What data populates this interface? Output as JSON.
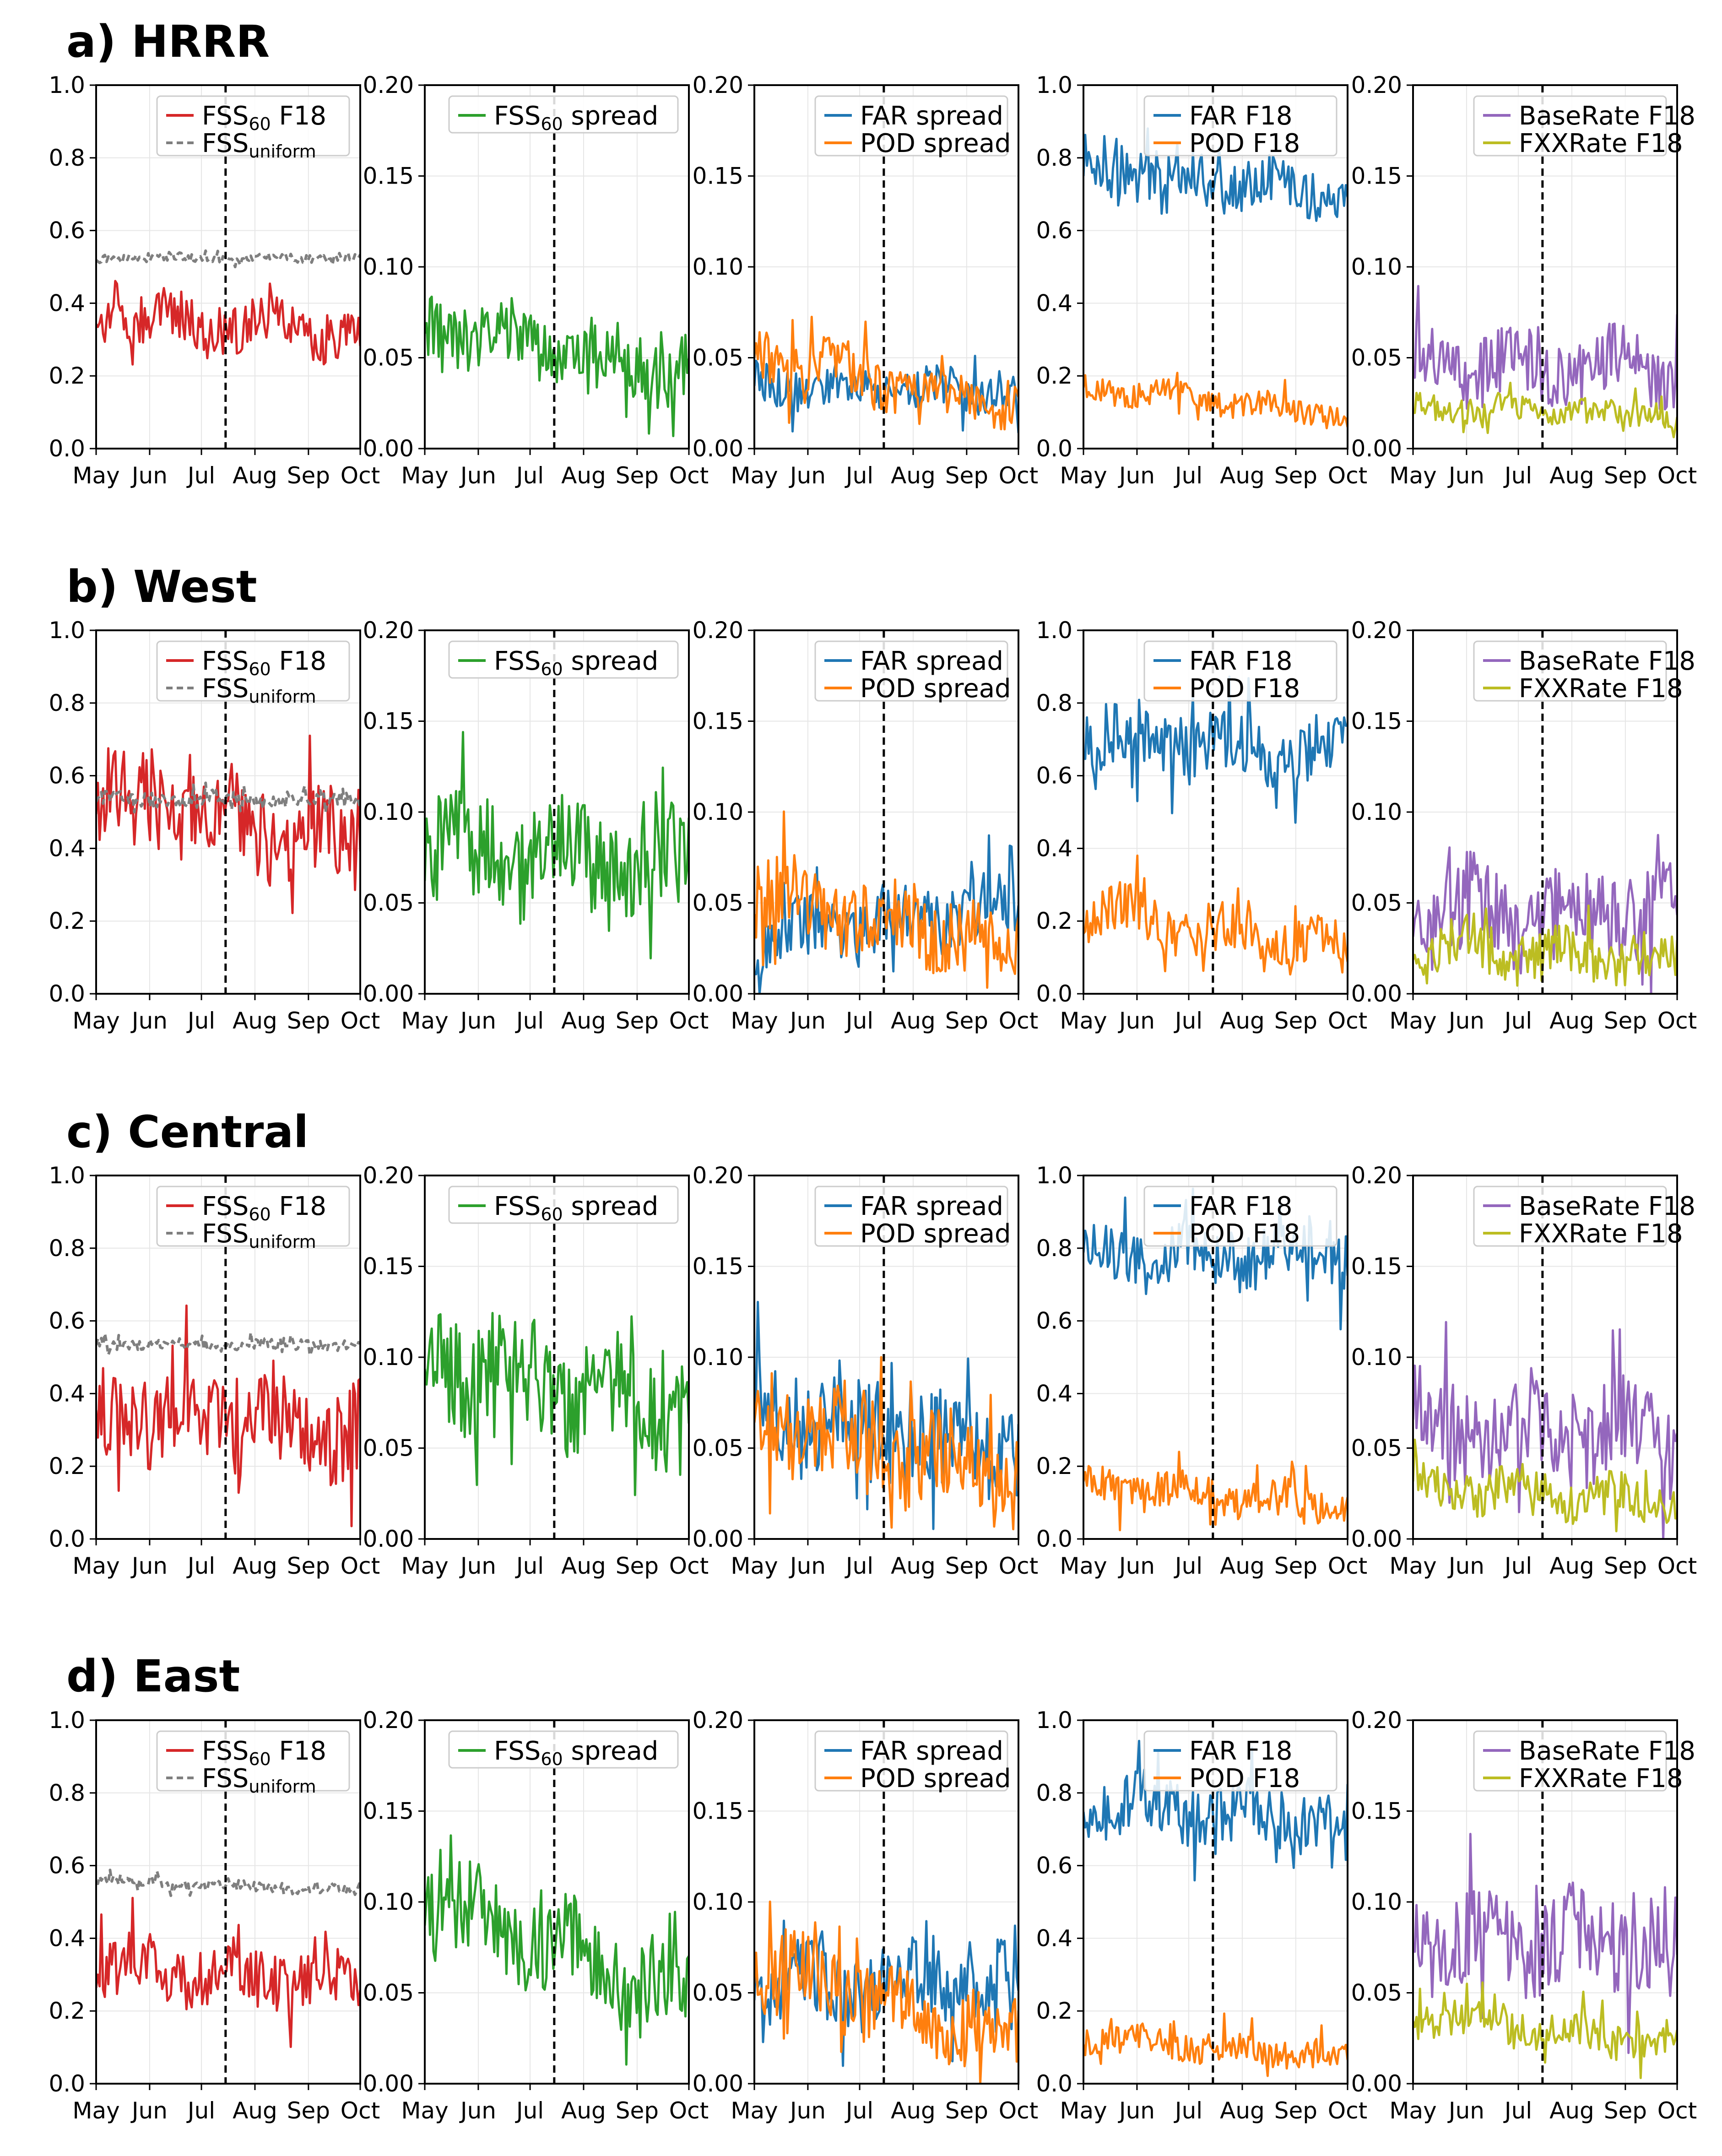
{
  "colors": {
    "fss": "#d62728",
    "fss_uniform": "#7f7f7f",
    "fss_spread": "#2ca02c",
    "far": "#1f77b4",
    "pod": "#ff7f0e",
    "baserate": "#9467bd",
    "fxxrate": "#bcbd22",
    "grid": "#e6e6e6",
    "vline": "#000000"
  },
  "x_tick_labels": [
    "May",
    "Jun",
    "Jul",
    "Aug",
    "Sep",
    "Oct"
  ],
  "y_ticks": {
    "p1": [
      "0.0",
      "0.2",
      "0.4",
      "0.6",
      "0.8",
      "1.0"
    ],
    "p2": [
      "0.00",
      "0.05",
      "0.10",
      "0.15",
      "0.20"
    ],
    "p3": [
      "0.00",
      "0.05",
      "0.10",
      "0.15",
      "0.20"
    ],
    "p4": [
      "0.0",
      "0.2",
      "0.4",
      "0.6",
      "0.8",
      "1.0"
    ],
    "p5": [
      "0.00",
      "0.05",
      "0.10",
      "0.15",
      "0.20"
    ]
  },
  "legend": {
    "p1": [
      {
        "base": "FSS",
        "sub": "60",
        "rest": " F18",
        "color_key": "fss",
        "dashed": false
      },
      {
        "base": "FSS",
        "sub": "uniform",
        "rest": "",
        "color_key": "fss_uniform",
        "dashed": true
      }
    ],
    "p2": [
      {
        "base": "FSS",
        "sub": "60",
        "rest": " spread",
        "color_key": "fss_spread",
        "dashed": false
      }
    ],
    "p3": [
      {
        "base": "FAR spread",
        "sub": "",
        "rest": "",
        "color_key": "far",
        "dashed": false
      },
      {
        "base": "POD spread",
        "sub": "",
        "rest": "",
        "color_key": "pod",
        "dashed": false
      }
    ],
    "p4": [
      {
        "base": "FAR F18",
        "sub": "",
        "rest": "",
        "color_key": "far",
        "dashed": false
      },
      {
        "base": "POD F18",
        "sub": "",
        "rest": "",
        "color_key": "pod",
        "dashed": false
      }
    ],
    "p5": [
      {
        "base": "BaseRate F18",
        "sub": "",
        "rest": "",
        "color_key": "baserate",
        "dashed": false
      },
      {
        "base": "FXXRate F18",
        "sub": "",
        "rest": "",
        "color_key": "fxxrate",
        "dashed": false
      }
    ]
  },
  "chart_data": {
    "type": "line",
    "x_axis": {
      "type": "date",
      "range": [
        "2019-05-01",
        "2019-10-01"
      ],
      "ticks": [
        "May",
        "Jun",
        "Jul",
        "Aug",
        "Sep",
        "Oct"
      ]
    },
    "vline": "Jul 15",
    "grid": true,
    "legend_placement": "upper-right",
    "panel_ylim": {
      "p1": [
        0,
        1
      ],
      "p2": [
        0,
        0.2
      ],
      "p3": [
        0,
        0.2
      ],
      "p4": [
        0,
        1
      ],
      "p5": [
        0,
        0.2
      ]
    },
    "rows": [
      {
        "title": "a) HRRR",
        "series": {
          "fss": {
            "mean": 0.34,
            "amp": 0.07,
            "trend": -0.06
          },
          "fss_uniform": {
            "mean": 0.525,
            "amp": 0.012,
            "trend": 0.0
          },
          "fss_spread": {
            "mean": 0.055,
            "amp": 0.018,
            "trend": -0.025
          },
          "far_spread": {
            "mean": 0.033,
            "amp": 0.011,
            "trend": -0.005
          },
          "pod_spread": {
            "mean": 0.038,
            "amp": 0.015,
            "trend": -0.03
          },
          "far": {
            "mean": 0.74,
            "amp": 0.07,
            "trend": -0.08
          },
          "pod": {
            "mean": 0.13,
            "amp": 0.035,
            "trend": -0.08
          },
          "baserate": {
            "mean": 0.045,
            "amp": 0.018,
            "trend": 0.0
          },
          "fxxrate": {
            "mean": 0.021,
            "amp": 0.007,
            "trend": -0.005
          }
        }
      },
      {
        "title": "b) West",
        "series": {
          "fss": {
            "mean": 0.48,
            "amp": 0.12,
            "trend": -0.15
          },
          "fss_uniform": {
            "mean": 0.535,
            "amp": 0.02,
            "trend": 0.0
          },
          "fss_spread": {
            "mean": 0.075,
            "amp": 0.03,
            "trend": -0.01
          },
          "far_spread": {
            "mean": 0.04,
            "amp": 0.018,
            "trend": 0.02
          },
          "pod_spread": {
            "mean": 0.04,
            "amp": 0.02,
            "trend": -0.03
          },
          "far": {
            "mean": 0.68,
            "amp": 0.09,
            "trend": -0.05
          },
          "pod": {
            "mean": 0.17,
            "amp": 0.07,
            "trend": -0.12
          },
          "baserate": {
            "mean": 0.045,
            "amp": 0.025,
            "trend": 0.0
          },
          "fxxrate": {
            "mean": 0.022,
            "amp": 0.014,
            "trend": -0.01
          }
        }
      },
      {
        "title": "c) Central",
        "series": {
          "fss": {
            "mean": 0.33,
            "amp": 0.13,
            "trend": -0.05
          },
          "fss_uniform": {
            "mean": 0.535,
            "amp": 0.015,
            "trend": 0.0
          },
          "fss_spread": {
            "mean": 0.085,
            "amp": 0.03,
            "trend": -0.03
          },
          "far_spread": {
            "mean": 0.06,
            "amp": 0.025,
            "trend": -0.02
          },
          "pod_spread": {
            "mean": 0.05,
            "amp": 0.025,
            "trend": -0.035
          },
          "far": {
            "mean": 0.78,
            "amp": 0.08,
            "trend": 0.0
          },
          "pod": {
            "mean": 0.12,
            "amp": 0.05,
            "trend": -0.06
          },
          "baserate": {
            "mean": 0.06,
            "amp": 0.025,
            "trend": -0.01
          },
          "fxxrate": {
            "mean": 0.025,
            "amp": 0.012,
            "trend": -0.01
          }
        }
      },
      {
        "title": "d) East",
        "series": {
          "fss": {
            "mean": 0.3,
            "amp": 0.08,
            "trend": -0.05
          },
          "fss_uniform": {
            "mean": 0.545,
            "amp": 0.015,
            "trend": -0.03
          },
          "fss_spread": {
            "mean": 0.075,
            "amp": 0.025,
            "trend": -0.05
          },
          "far_spread": {
            "mean": 0.055,
            "amp": 0.02,
            "trend": 0.0
          },
          "pod_spread": {
            "mean": 0.045,
            "amp": 0.02,
            "trend": -0.04
          },
          "far": {
            "mean": 0.75,
            "amp": 0.08,
            "trend": -0.05
          },
          "pod": {
            "mean": 0.1,
            "amp": 0.04,
            "trend": -0.05
          },
          "baserate": {
            "mean": 0.08,
            "amp": 0.025,
            "trend": 0.0
          },
          "fxxrate": {
            "mean": 0.03,
            "amp": 0.01,
            "trend": -0.015
          }
        }
      }
    ]
  }
}
